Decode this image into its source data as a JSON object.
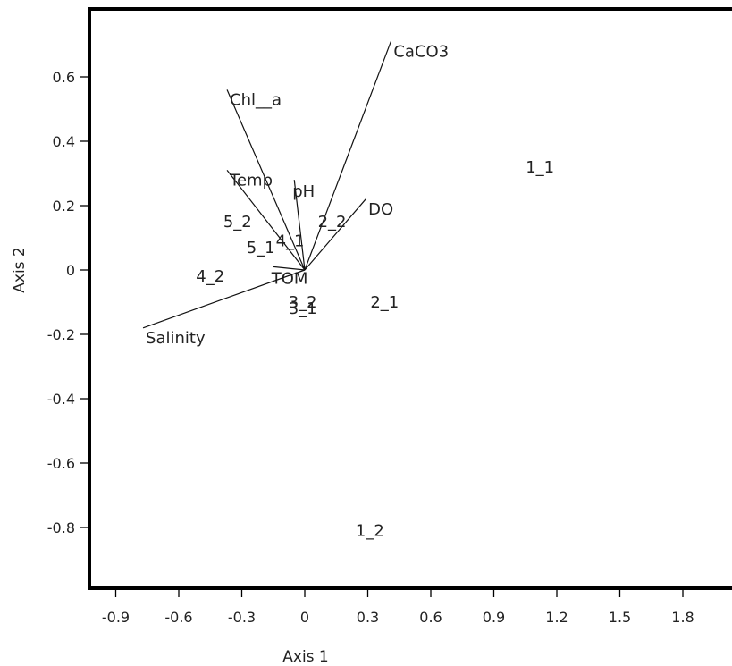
{
  "chart_data": {
    "type": "scatter",
    "title": "",
    "xlabel": "Axis 1",
    "ylabel": "Axis 2",
    "xlim": [
      -1.05,
      2.05
    ],
    "ylim": [
      -0.98,
      0.8
    ],
    "xticks": [
      -0.9,
      -0.6,
      -0.3,
      0,
      0.3,
      0.6,
      0.9,
      1.2,
      1.5,
      1.8
    ],
    "xtick_labels": [
      "-0.9",
      "-0.6",
      "-0.3",
      "0",
      "0.3",
      "0.6",
      "0.9",
      "1.2",
      "1.5",
      "1.8"
    ],
    "yticks": [
      0.6,
      0.4,
      0.2,
      0,
      -0.2,
      -0.4,
      -0.6,
      -0.8
    ],
    "ytick_labels": [
      "0.6",
      "0.4",
      "0.2",
      "0",
      "-0.2",
      "-0.4",
      "-0.6",
      "-0.8"
    ],
    "grid": false,
    "points": [
      {
        "label": "1_1",
        "x": 1.12,
        "y": 0.32
      },
      {
        "label": "1_2",
        "x": 0.31,
        "y": -0.81
      },
      {
        "label": "2_1",
        "x": 0.38,
        "y": -0.1
      },
      {
        "label": "2_2",
        "x": 0.13,
        "y": 0.15
      },
      {
        "label": "3_1",
        "x": -0.01,
        "y": -0.12
      },
      {
        "label": "3_2",
        "x": -0.01,
        "y": -0.1
      },
      {
        "label": "4_1",
        "x": -0.07,
        "y": 0.09
      },
      {
        "label": "4_2",
        "x": -0.45,
        "y": -0.02
      },
      {
        "label": "5_1",
        "x": -0.21,
        "y": 0.07
      },
      {
        "label": "5_2",
        "x": -0.32,
        "y": 0.15
      }
    ],
    "vectors": [
      {
        "label": "CaCO3",
        "x": 0.41,
        "y": 0.71
      },
      {
        "label": "Chl__a",
        "x": -0.37,
        "y": 0.56
      },
      {
        "label": "Temp",
        "x": -0.37,
        "y": 0.31
      },
      {
        "label": "pH",
        "x": -0.05,
        "y": 0.28
      },
      {
        "label": "DO",
        "x": 0.29,
        "y": 0.22
      },
      {
        "label": "TOM",
        "x": -0.15,
        "y": 0.01
      },
      {
        "label": "Salinity",
        "x": -0.77,
        "y": -0.18
      }
    ]
  }
}
